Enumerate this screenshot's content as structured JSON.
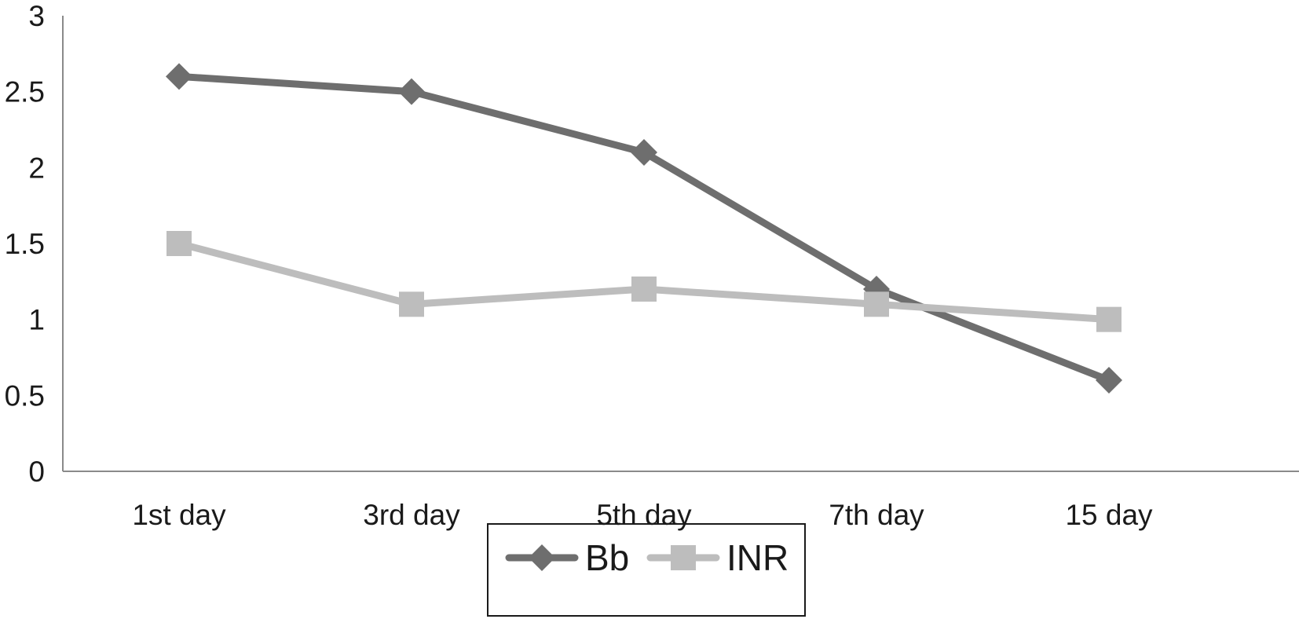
{
  "chart_data": {
    "type": "line",
    "categories": [
      "1st day",
      "3rd day",
      "5th day",
      "7th day",
      "15 day"
    ],
    "series": [
      {
        "name": "Bb",
        "values": [
          2.6,
          2.5,
          2.1,
          1.2,
          0.6
        ],
        "color": "#6e6e6e",
        "marker": "diamond"
      },
      {
        "name": "INR",
        "values": [
          1.5,
          1.1,
          1.2,
          1.1,
          1.0
        ],
        "color": "#bdbdbd",
        "marker": "square"
      }
    ],
    "yticks": [
      "0",
      "0.5",
      "1",
      "1.5",
      "2",
      "2.5",
      "3"
    ],
    "ylim": [
      0,
      3
    ],
    "title": "",
    "xlabel": "",
    "ylabel": "",
    "grid": false,
    "legend_position": "bottom"
  }
}
